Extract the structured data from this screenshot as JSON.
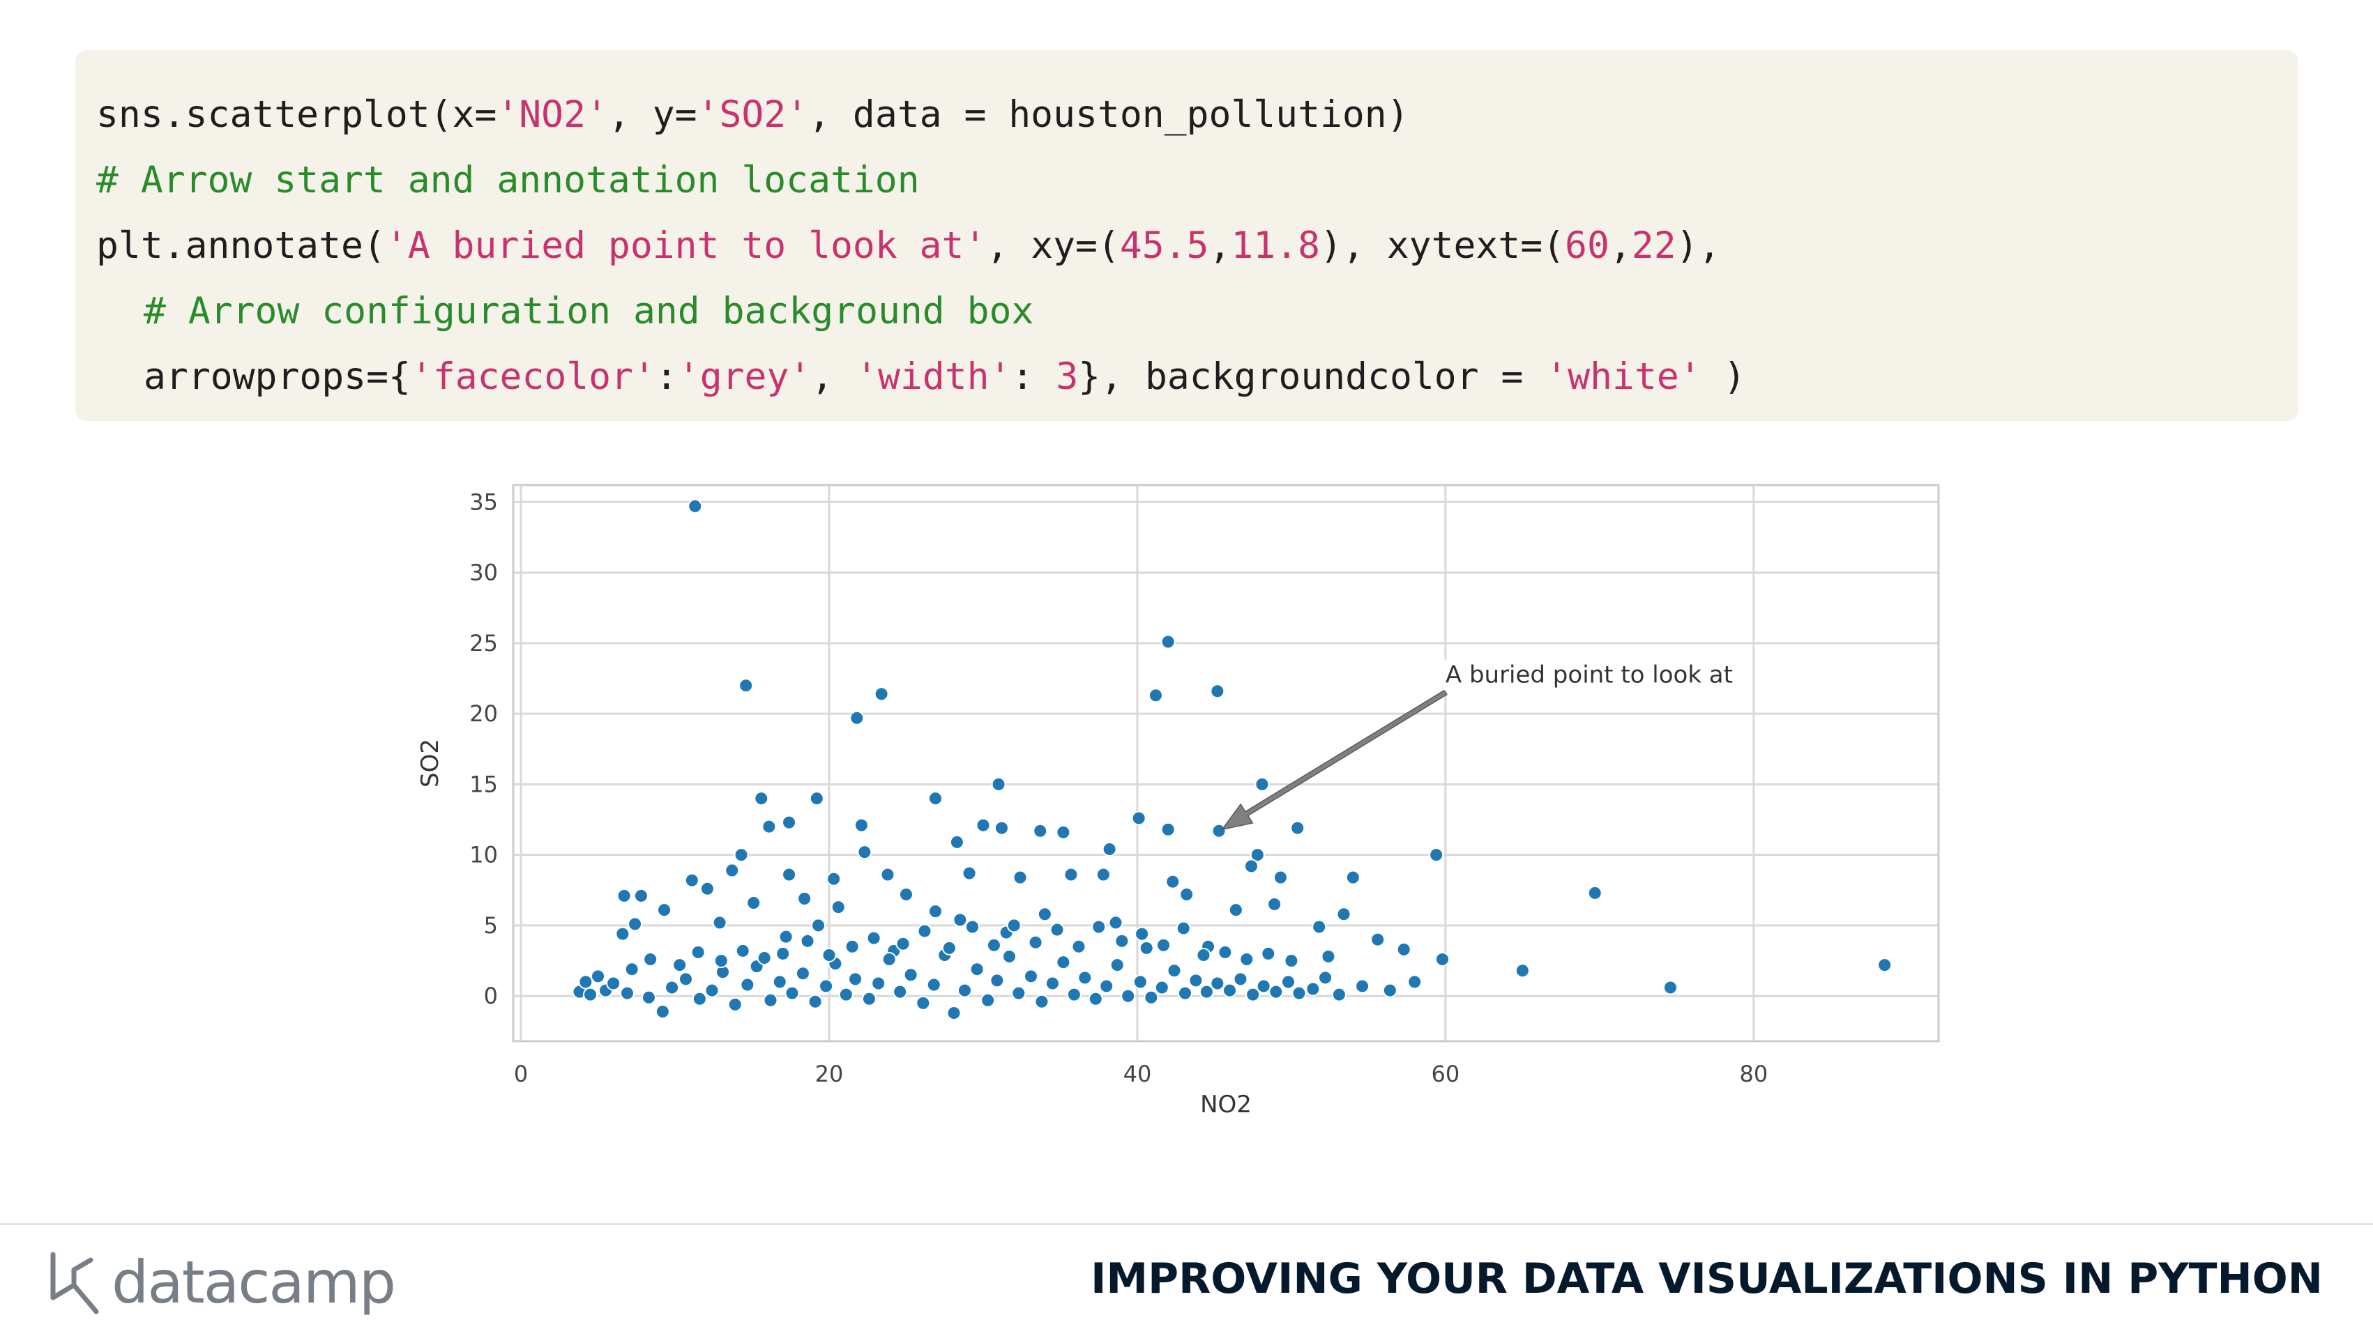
{
  "code": {
    "line1": [
      {
        "t": "sns.scatterplot(x=",
        "c": "plain"
      },
      {
        "t": "'NO2'",
        "c": "str"
      },
      {
        "t": ", y=",
        "c": "plain"
      },
      {
        "t": "'SO2'",
        "c": "str"
      },
      {
        "t": ", data = houston_pollution)",
        "c": "plain"
      }
    ],
    "line2": [
      {
        "t": "# Arrow start and annotation location",
        "c": "comment"
      }
    ],
    "line3": [
      {
        "t": "plt.annotate(",
        "c": "plain"
      },
      {
        "t": "'A buried point to look at'",
        "c": "str"
      },
      {
        "t": ", xy=(",
        "c": "plain"
      },
      {
        "t": "45.5",
        "c": "num"
      },
      {
        "t": ",",
        "c": "plain"
      },
      {
        "t": "11.8",
        "c": "num"
      },
      {
        "t": "), xytext=(",
        "c": "plain"
      },
      {
        "t": "60",
        "c": "num"
      },
      {
        "t": ",",
        "c": "plain"
      },
      {
        "t": "22",
        "c": "num"
      },
      {
        "t": "),",
        "c": "plain"
      }
    ],
    "line4": [
      {
        "t": "# Arrow configuration and background box",
        "c": "comment"
      }
    ],
    "line5": [
      {
        "t": "arrowprops={",
        "c": "plain"
      },
      {
        "t": "'facecolor'",
        "c": "str"
      },
      {
        "t": ":",
        "c": "plain"
      },
      {
        "t": "'grey'",
        "c": "str"
      },
      {
        "t": ", ",
        "c": "plain"
      },
      {
        "t": "'width'",
        "c": "str"
      },
      {
        "t": ": ",
        "c": "plain"
      },
      {
        "t": "3",
        "c": "num"
      },
      {
        "t": "}, backgroundcolor = ",
        "c": "plain"
      },
      {
        "t": "'white'",
        "c": "str"
      },
      {
        "t": " )",
        "c": "plain"
      }
    ]
  },
  "chart_data": {
    "type": "scatter",
    "xlabel": "NO2",
    "ylabel": "SO2",
    "xlim": [
      -0.5,
      92
    ],
    "ylim": [
      -3.2,
      36.2
    ],
    "xticks": [
      0,
      20,
      40,
      60,
      80
    ],
    "yticks": [
      0,
      5,
      10,
      15,
      20,
      25,
      30,
      35
    ],
    "grid": true,
    "point_color": "#1f77b4",
    "arrow_color": "#808080",
    "annotation": {
      "text": "A buried point to look at",
      "xy": [
        45.5,
        11.8
      ],
      "xytext": [
        60,
        22
      ]
    },
    "points": [
      [
        11.3,
        34.7
      ],
      [
        14.6,
        22.0
      ],
      [
        23.4,
        21.4
      ],
      [
        21.8,
        19.7
      ],
      [
        42.0,
        25.1
      ],
      [
        41.2,
        21.3
      ],
      [
        45.2,
        21.6
      ],
      [
        15.6,
        14.0
      ],
      [
        19.2,
        14.0
      ],
      [
        26.9,
        14.0
      ],
      [
        31.0,
        15.0
      ],
      [
        48.1,
        15.0
      ],
      [
        16.1,
        12.0
      ],
      [
        17.4,
        12.3
      ],
      [
        22.1,
        12.1
      ],
      [
        30.0,
        12.1
      ],
      [
        31.2,
        11.9
      ],
      [
        33.7,
        11.7
      ],
      [
        35.2,
        11.6
      ],
      [
        40.1,
        12.6
      ],
      [
        42.0,
        11.8
      ],
      [
        45.3,
        11.7
      ],
      [
        50.4,
        11.9
      ],
      [
        14.3,
        10.0
      ],
      [
        22.3,
        10.2
      ],
      [
        28.3,
        10.9
      ],
      [
        38.2,
        10.4
      ],
      [
        47.8,
        10.0
      ],
      [
        59.4,
        10.0
      ],
      [
        11.1,
        8.2
      ],
      [
        13.7,
        8.9
      ],
      [
        17.4,
        8.6
      ],
      [
        20.3,
        8.3
      ],
      [
        23.8,
        8.6
      ],
      [
        29.1,
        8.7
      ],
      [
        32.4,
        8.4
      ],
      [
        35.7,
        8.6
      ],
      [
        37.8,
        8.6
      ],
      [
        42.3,
        8.1
      ],
      [
        47.4,
        9.2
      ],
      [
        49.3,
        8.4
      ],
      [
        54.0,
        8.4
      ],
      [
        6.7,
        7.1
      ],
      [
        7.8,
        7.1
      ],
      [
        12.1,
        7.6
      ],
      [
        18.4,
        6.9
      ],
      [
        25.0,
        7.2
      ],
      [
        43.2,
        7.2
      ],
      [
        69.7,
        7.3
      ],
      [
        9.3,
        6.1
      ],
      [
        15.1,
        6.6
      ],
      [
        20.6,
        6.3
      ],
      [
        26.9,
        6.0
      ],
      [
        34.0,
        5.8
      ],
      [
        46.4,
        6.1
      ],
      [
        48.9,
        6.5
      ],
      [
        7.4,
        5.1
      ],
      [
        12.9,
        5.2
      ],
      [
        19.3,
        5.0
      ],
      [
        28.5,
        5.4
      ],
      [
        38.6,
        5.2
      ],
      [
        51.8,
        4.9
      ],
      [
        53.4,
        5.8
      ],
      [
        6.6,
        4.4
      ],
      [
        17.2,
        4.2
      ],
      [
        31.5,
        4.5
      ],
      [
        44.6,
        3.5
      ],
      [
        55.6,
        4.0
      ],
      [
        57.3,
        3.3
      ],
      [
        11.5,
        3.1
      ],
      [
        24.2,
        3.2
      ],
      [
        40.6,
        3.4
      ],
      [
        52.4,
        2.8
      ],
      [
        59.8,
        2.6
      ],
      [
        65.0,
        1.8
      ],
      [
        74.6,
        0.6
      ],
      [
        88.5,
        2.2
      ],
      [
        3.8,
        0.3
      ],
      [
        4.5,
        0.1
      ],
      [
        5.5,
        0.4
      ],
      [
        6.0,
        0.9
      ],
      [
        6.9,
        0.2
      ],
      [
        8.3,
        -0.1
      ],
      [
        9.2,
        -1.1
      ],
      [
        9.8,
        0.6
      ],
      [
        10.7,
        1.2
      ],
      [
        11.6,
        -0.2
      ],
      [
        12.4,
        0.4
      ],
      [
        13.1,
        1.7
      ],
      [
        13.9,
        -0.6
      ],
      [
        14.7,
        0.8
      ],
      [
        15.3,
        2.1
      ],
      [
        16.2,
        -0.3
      ],
      [
        16.8,
        1.0
      ],
      [
        17.6,
        0.2
      ],
      [
        18.3,
        1.6
      ],
      [
        19.1,
        -0.4
      ],
      [
        19.8,
        0.7
      ],
      [
        20.4,
        2.3
      ],
      [
        21.1,
        0.1
      ],
      [
        21.7,
        1.2
      ],
      [
        22.6,
        -0.2
      ],
      [
        23.2,
        0.9
      ],
      [
        23.9,
        2.6
      ],
      [
        24.6,
        0.3
      ],
      [
        25.3,
        1.5
      ],
      [
        26.1,
        -0.5
      ],
      [
        26.8,
        0.8
      ],
      [
        27.5,
        2.9
      ],
      [
        28.1,
        -1.2
      ],
      [
        28.8,
        0.4
      ],
      [
        29.6,
        1.9
      ],
      [
        30.3,
        -0.3
      ],
      [
        30.9,
        1.1
      ],
      [
        31.7,
        2.8
      ],
      [
        32.3,
        0.2
      ],
      [
        33.1,
        1.4
      ],
      [
        33.8,
        -0.4
      ],
      [
        34.5,
        0.9
      ],
      [
        35.2,
        2.4
      ],
      [
        35.9,
        0.1
      ],
      [
        36.6,
        1.3
      ],
      [
        37.3,
        -0.2
      ],
      [
        38.0,
        0.7
      ],
      [
        38.7,
        2.2
      ],
      [
        39.4,
        0.0
      ],
      [
        40.2,
        1.0
      ],
      [
        40.9,
        -0.1
      ],
      [
        41.6,
        0.6
      ],
      [
        42.4,
        1.8
      ],
      [
        43.1,
        0.2
      ],
      [
        43.8,
        1.1
      ],
      [
        44.5,
        0.3
      ],
      [
        45.2,
        0.9
      ],
      [
        46.0,
        0.4
      ],
      [
        46.7,
        1.2
      ],
      [
        47.5,
        0.1
      ],
      [
        48.2,
        0.7
      ],
      [
        49.0,
        0.3
      ],
      [
        49.8,
        1.0
      ],
      [
        50.5,
        0.2
      ],
      [
        51.4,
        0.5
      ],
      [
        52.2,
        1.3
      ],
      [
        53.1,
        0.1
      ],
      [
        54.6,
        0.7
      ],
      [
        56.4,
        0.4
      ],
      [
        58.0,
        1.0
      ],
      [
        17.0,
        3.0
      ],
      [
        18.6,
        3.9
      ],
      [
        20.0,
        2.9
      ],
      [
        21.5,
        3.5
      ],
      [
        22.9,
        4.1
      ],
      [
        24.8,
        3.7
      ],
      [
        26.2,
        4.6
      ],
      [
        27.8,
        3.4
      ],
      [
        29.3,
        4.9
      ],
      [
        30.7,
        3.6
      ],
      [
        32.0,
        5.0
      ],
      [
        33.4,
        3.8
      ],
      [
        34.8,
        4.7
      ],
      [
        36.2,
        3.5
      ],
      [
        37.5,
        4.9
      ],
      [
        39.0,
        3.9
      ],
      [
        40.3,
        4.4
      ],
      [
        41.7,
        3.6
      ],
      [
        43.0,
        4.8
      ],
      [
        44.3,
        2.9
      ],
      [
        45.7,
        3.1
      ],
      [
        47.1,
        2.6
      ],
      [
        48.5,
        3.0
      ],
      [
        50.0,
        2.5
      ],
      [
        13.0,
        2.5
      ],
      [
        14.4,
        3.2
      ],
      [
        15.8,
        2.7
      ],
      [
        10.3,
        2.2
      ],
      [
        8.4,
        2.6
      ],
      [
        7.2,
        1.9
      ],
      [
        5.0,
        1.4
      ],
      [
        4.2,
        1.0
      ]
    ]
  },
  "footer": {
    "brand": "datacamp",
    "course_title": "IMPROVING YOUR DATA VISUALIZATIONS IN PYTHON"
  }
}
